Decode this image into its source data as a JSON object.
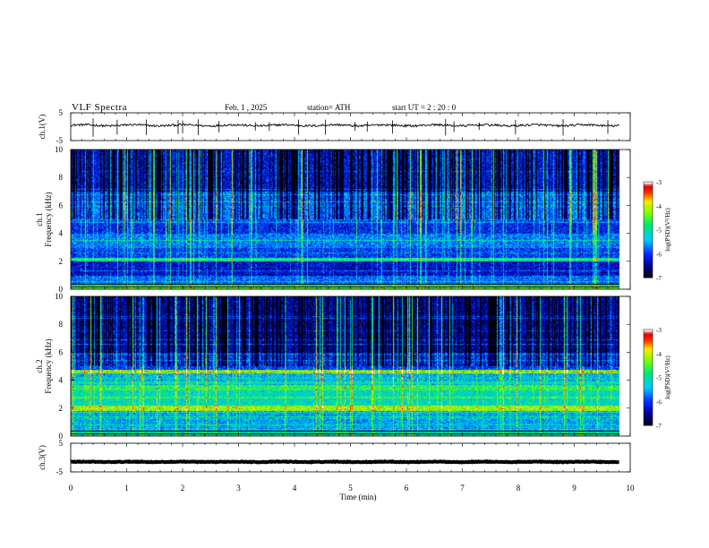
{
  "header": {
    "title": "VLF  Spectra",
    "date": "Feb. 1  , 2025",
    "station": "station= ATH",
    "start": "start  UT  =   2  : 20 : 0"
  },
  "chart_data": [
    {
      "type": "line",
      "name": "ch1-waveform",
      "ylabel": "ch.1(V)",
      "ylim": [
        -5,
        5
      ],
      "yticks": [
        "5",
        "-5"
      ],
      "xlim": [
        0,
        10
      ],
      "data_extent_min": 9.8,
      "baseline": 0.5,
      "noise_amplitude": 0.5,
      "spikes": [
        0.4,
        0.83,
        1.35,
        1.92,
        2.0,
        2.28,
        2.65,
        3.3,
        3.55,
        4.07,
        4.55,
        5.08,
        5.3,
        5.75,
        6.7,
        6.85,
        7.3,
        7.95,
        8.8,
        9.6
      ]
    },
    {
      "type": "heatmap",
      "name": "ch1-spectrogram",
      "ylabel_top": "ch.1",
      "ylabel": "Frequency  (kHz)",
      "ylim": [
        0,
        10
      ],
      "yticks": [
        "0",
        "2",
        "4",
        "6",
        "8",
        "10"
      ],
      "xlim": [
        0,
        10
      ],
      "colorbar": {
        "label": "log(PSD)(V²/Hz)",
        "range": [
          -7,
          -3
        ],
        "ticks": [
          "-3",
          "-4",
          "-5",
          "-6",
          "-7"
        ]
      },
      "bands": [
        {
          "from": 0.0,
          "to": 0.4,
          "level": -4.8
        },
        {
          "from": 0.4,
          "to": 1.0,
          "level": -5.8
        },
        {
          "from": 1.0,
          "to": 2.0,
          "level": -6.3
        },
        {
          "from": 2.0,
          "to": 2.3,
          "level": -5.0
        },
        {
          "from": 2.3,
          "to": 3.0,
          "level": -6.0
        },
        {
          "from": 3.0,
          "to": 4.0,
          "level": -5.7
        },
        {
          "from": 4.0,
          "to": 5.0,
          "level": -6.1
        },
        {
          "from": 5.0,
          "to": 7.0,
          "level": -5.7
        },
        {
          "from": 7.0,
          "to": 10.0,
          "level": -6.2
        }
      ]
    },
    {
      "type": "heatmap",
      "name": "ch2-spectrogram",
      "ylabel_top": "ch.2",
      "ylabel": "Frequency  (kHz)",
      "ylim": [
        0,
        10
      ],
      "yticks": [
        "0",
        "2",
        "4",
        "6",
        "8",
        "10"
      ],
      "xlim": [
        0,
        10
      ],
      "colorbar": {
        "label": "log(PSD)(V²/Hz)",
        "range": [
          -7,
          -3
        ],
        "ticks": [
          "-3",
          "-4",
          "-5",
          "-6",
          "-7"
        ]
      },
      "bands": [
        {
          "from": 0.0,
          "to": 0.4,
          "level": -5.0
        },
        {
          "from": 0.4,
          "to": 1.8,
          "level": -5.5
        },
        {
          "from": 1.8,
          "to": 2.2,
          "level": -4.2
        },
        {
          "from": 2.2,
          "to": 3.3,
          "level": -5.1
        },
        {
          "from": 3.3,
          "to": 3.7,
          "level": -4.7
        },
        {
          "from": 3.7,
          "to": 4.5,
          "level": -5.4
        },
        {
          "from": 4.5,
          "to": 4.8,
          "level": -4.5
        },
        {
          "from": 4.8,
          "to": 6.0,
          "level": -6.0
        },
        {
          "from": 6.0,
          "to": 10.0,
          "level": -6.4
        }
      ]
    },
    {
      "type": "line",
      "name": "ch3-waveform",
      "ylabel": "ch.3(V)",
      "ylim": [
        -5,
        5
      ],
      "yticks": [
        "5",
        "-5"
      ],
      "xlim": [
        0,
        10
      ],
      "data_extent_min": 9.8,
      "baseline": -1.5,
      "noise_amplitude": 0.15
    }
  ],
  "xaxis": {
    "label": "Time  (min)",
    "ticks": [
      "0",
      "1",
      "2",
      "3",
      "4",
      "5",
      "6",
      "7",
      "8",
      "9",
      "10"
    ]
  }
}
